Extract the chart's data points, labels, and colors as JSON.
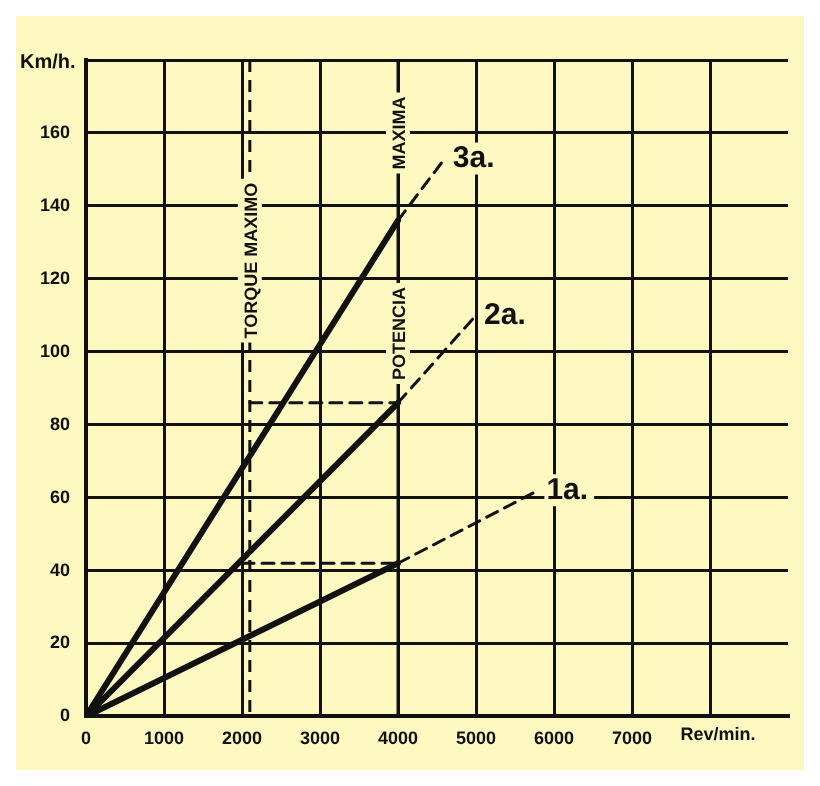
{
  "chart_data": {
    "type": "line",
    "xlabel": "Rev/min.",
    "ylabel": "Km/h.",
    "xlim": [
      0,
      9000
    ],
    "xticks": [
      0,
      1000,
      2000,
      3000,
      4000,
      5000,
      6000,
      7000,
      {
        "value": 8000,
        "label": null
      }
    ],
    "ylim": [
      0,
      180
    ],
    "yticks": [
      0,
      20,
      40,
      60,
      80,
      100,
      120,
      140,
      160,
      {
        "value": 180,
        "label": null
      }
    ],
    "grid": true,
    "legend": false,
    "marker": "none",
    "series": [
      {
        "name": "1a.",
        "color": "#111111",
        "x": [
          0,
          4000
        ],
        "values": [
          0,
          42
        ],
        "line_style": "solid"
      },
      {
        "name": "2a.",
        "color": "#111111",
        "x": [
          0,
          4000
        ],
        "values": [
          0,
          86
        ],
        "line_style": "solid"
      },
      {
        "name": "3a.",
        "color": "#111111",
        "x": [
          0,
          4000
        ],
        "values": [
          0,
          136
        ],
        "line_style": "solid"
      },
      {
        "color": "#111111",
        "x": [
          4000,
          5800
        ],
        "values": [
          42,
          62
        ],
        "line_style": "dashed"
      },
      {
        "color": "#111111",
        "x": [
          4000,
          5000
        ],
        "values": [
          86,
          110
        ],
        "line_style": "dashed"
      },
      {
        "color": "#111111",
        "x": [
          4000,
          4600
        ],
        "values": [
          136,
          153
        ],
        "line_style": "dashed"
      },
      {
        "color": "#111111",
        "x": [
          2000,
          4000
        ],
        "values": [
          42,
          42
        ],
        "line_style": "dashed"
      },
      {
        "color": "#111111",
        "x": [
          2100,
          4000
        ],
        "values": [
          86,
          86
        ],
        "line_style": "dashed"
      }
    ],
    "ref_lines": [
      {
        "axis": "x",
        "value": 2100,
        "label": "TORQUE MAXIMO",
        "color": "#111111",
        "line_style": "dashed"
      },
      {
        "axis": "x",
        "value": 4000,
        "label": "POTENCIA MAXIMA",
        "color": "#111111",
        "line_style": "solid"
      }
    ]
  }
}
